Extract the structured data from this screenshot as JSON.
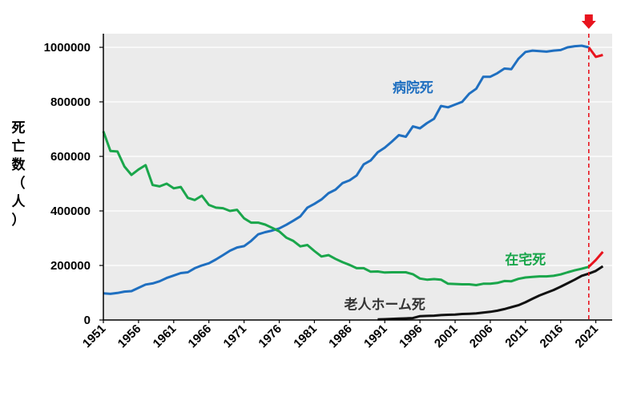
{
  "chart_data": {
    "type": "line",
    "ylabel_chars": [
      "死",
      "亡",
      "数",
      "（",
      "人",
      "）"
    ],
    "xlim": [
      1951,
      2022
    ],
    "ylim": [
      0,
      1050000
    ],
    "yticks": [
      0,
      200000,
      400000,
      600000,
      800000,
      1000000
    ],
    "ytick_labels": [
      "0",
      "200000",
      "400000",
      "600000",
      "800000",
      "1000000"
    ],
    "xticks": [
      1951,
      1956,
      1961,
      1966,
      1971,
      1976,
      1981,
      1986,
      1991,
      1996,
      2001,
      2006,
      2011,
      2016,
      2021
    ],
    "xtick_labels": [
      "1951",
      "1956",
      "1961",
      "1966",
      "1971",
      "1976",
      "1981",
      "1986",
      "1991",
      "1996",
      "2001",
      "2006",
      "2011",
      "2016",
      "2021"
    ],
    "marker_year": 2020,
    "marker_color": "#e8141e",
    "plot_background": "#ebebeb",
    "series": [
      {
        "name": "病院死",
        "color": "#1f6fc0",
        "highlight_color": "#e8141e",
        "label_year": 1995,
        "label_value": 835000,
        "x": [
          1951,
          1952,
          1953,
          1954,
          1955,
          1956,
          1957,
          1958,
          1959,
          1960,
          1961,
          1962,
          1963,
          1964,
          1965,
          1966,
          1967,
          1968,
          1969,
          1970,
          1971,
          1972,
          1973,
          1974,
          1975,
          1976,
          1977,
          1978,
          1979,
          1980,
          1981,
          1982,
          1983,
          1984,
          1985,
          1986,
          1987,
          1988,
          1989,
          1990,
          1991,
          1992,
          1993,
          1994,
          1995,
          1996,
          1997,
          1998,
          1999,
          2000,
          2001,
          2002,
          2003,
          2004,
          2005,
          2006,
          2007,
          2008,
          2009,
          2010,
          2011,
          2012,
          2013,
          2014,
          2015,
          2016,
          2017,
          2018,
          2019,
          2020,
          2021,
          2022
        ],
        "values": [
          98000,
          96000,
          99000,
          104000,
          106000,
          118000,
          130000,
          134000,
          142000,
          154000,
          163000,
          172000,
          175000,
          190000,
          200000,
          208000,
          222000,
          238000,
          254000,
          266000,
          271000,
          290000,
          314000,
          322000,
          328000,
          336000,
          349000,
          364000,
          380000,
          412000,
          426000,
          442000,
          465000,
          478000,
          502000,
          512000,
          530000,
          571000,
          585000,
          615000,
          632000,
          654000,
          678000,
          672000,
          710000,
          703000,
          722000,
          738000,
          785000,
          780000,
          790000,
          800000,
          830000,
          848000,
          892000,
          892000,
          905000,
          922000,
          920000,
          958000,
          983000,
          988000,
          986000,
          984000,
          988000,
          990000,
          1000000,
          1004000,
          1006000,
          1000000,
          965000,
          972000
        ],
        "highlight_from": 2020
      },
      {
        "name": "在宅死",
        "color": "#1aa64b",
        "highlight_color": "#e8141e",
        "label_year": 2011,
        "label_value": 205000,
        "x": [
          1951,
          1952,
          1953,
          1954,
          1955,
          1956,
          1957,
          1958,
          1959,
          1960,
          1961,
          1962,
          1963,
          1964,
          1965,
          1966,
          1967,
          1968,
          1969,
          1970,
          1971,
          1972,
          1973,
          1974,
          1975,
          1976,
          1977,
          1978,
          1979,
          1980,
          1981,
          1982,
          1983,
          1984,
          1985,
          1986,
          1987,
          1988,
          1989,
          1990,
          1991,
          1992,
          1993,
          1994,
          1995,
          1996,
          1997,
          1998,
          1999,
          2000,
          2001,
          2002,
          2003,
          2004,
          2005,
          2006,
          2007,
          2008,
          2009,
          2010,
          2011,
          2012,
          2013,
          2014,
          2015,
          2016,
          2017,
          2018,
          2019,
          2020,
          2021,
          2022
        ],
        "values": [
          692000,
          620000,
          618000,
          563000,
          532000,
          552000,
          568000,
          495000,
          490000,
          500000,
          483000,
          488000,
          448000,
          440000,
          456000,
          422000,
          412000,
          410000,
          400000,
          404000,
          373000,
          357000,
          357000,
          350000,
          338000,
          325000,
          302000,
          290000,
          270000,
          275000,
          253000,
          233000,
          238000,
          224000,
          212000,
          202000,
          190000,
          190000,
          177000,
          178000,
          174000,
          175000,
          175000,
          175000,
          168000,
          152000,
          148000,
          150000,
          148000,
          133000,
          132000,
          131000,
          131000,
          128000,
          133000,
          133000,
          136000,
          143000,
          142000,
          151000,
          156000,
          158000,
          160000,
          160000,
          162000,
          167000,
          175000,
          182000,
          188000,
          195000,
          220000,
          250000
        ],
        "highlight_from": 2020
      },
      {
        "name": "老人ホーム死",
        "color": "#111111",
        "highlight_color": "#111111",
        "label_year": 1991,
        "label_value": 40000,
        "x": [
          1990,
          1991,
          1992,
          1993,
          1994,
          1995,
          1996,
          1997,
          1998,
          1999,
          2000,
          2001,
          2002,
          2003,
          2004,
          2005,
          2006,
          2007,
          2008,
          2009,
          2010,
          2011,
          2012,
          2013,
          2014,
          2015,
          2016,
          2017,
          2018,
          2019,
          2020,
          2021,
          2022
        ],
        "values": [
          2000,
          3000,
          4000,
          5000,
          6000,
          7000,
          14000,
          15000,
          16000,
          18000,
          19000,
          20000,
          22000,
          23000,
          24000,
          27000,
          30000,
          34000,
          40000,
          47000,
          54000,
          65000,
          78000,
          90000,
          100000,
          110000,
          122000,
          135000,
          148000,
          162000,
          170000,
          180000,
          197000
        ],
        "highlight_from": 2999
      }
    ]
  }
}
